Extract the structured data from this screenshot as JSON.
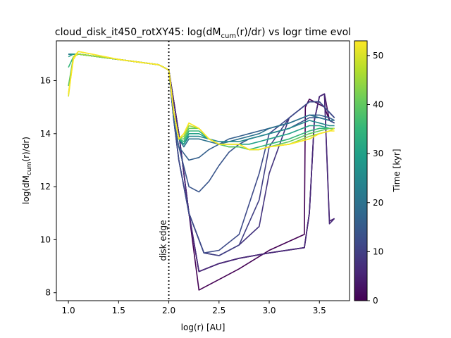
{
  "chart_data": {
    "type": "line",
    "title": {
      "prefix": "cloud_disk_it450_rotXY45: log(dM",
      "subscript": "cum",
      "suffix": "(r)/dr) vs logr time evol"
    },
    "xlabel": "log(r) [AU]",
    "ylabel": {
      "prefix": "log(dM",
      "subscript": "cum",
      "suffix": "(r)/dr)"
    },
    "xlim": [
      0.88,
      3.8
    ],
    "ylim": [
      7.7,
      17.5
    ],
    "xticks": [
      1.0,
      1.5,
      2.0,
      2.5,
      3.0,
      3.5
    ],
    "xtick_labels": [
      "1.0",
      "1.5",
      "2.0",
      "2.5",
      "3.0",
      "3.5"
    ],
    "yticks": [
      8,
      10,
      12,
      14,
      16
    ],
    "ytick_labels": [
      "8",
      "10",
      "12",
      "14",
      "16"
    ],
    "grid": false,
    "colormap": "viridis",
    "colorbar": {
      "label": "Time [kyr]",
      "min": 0,
      "max": 53,
      "ticks": [
        0,
        10,
        20,
        30,
        40,
        50
      ],
      "tick_labels": [
        "0",
        "10",
        "20",
        "30",
        "40",
        "50"
      ]
    },
    "annotation": {
      "text": "disk edge",
      "x": 2.0,
      "style": "dotted vertical line"
    },
    "series": [
      {
        "time": 0,
        "x": [
          1.0,
          1.05,
          1.1,
          1.5,
          1.9,
          2.0,
          2.1,
          2.2,
          2.3,
          2.5,
          2.7,
          3.0,
          3.35,
          3.36,
          3.4,
          3.55,
          3.6,
          3.65
        ],
        "y": [
          17.0,
          17.0,
          17.0,
          16.8,
          16.6,
          16.4,
          14.0,
          11.0,
          8.1,
          8.5,
          8.9,
          9.6,
          10.2,
          15.0,
          15.3,
          15.0,
          14.5,
          14.4
        ]
      },
      {
        "time": 2,
        "x": [
          1.0,
          1.05,
          1.1,
          1.5,
          1.9,
          2.0,
          2.1,
          2.2,
          2.3,
          2.5,
          2.7,
          3.0,
          3.35,
          3.4,
          3.45,
          3.5,
          3.55,
          3.6,
          3.65
        ],
        "y": [
          17.0,
          17.0,
          17.0,
          16.8,
          16.6,
          16.4,
          14.0,
          11.0,
          8.8,
          9.1,
          9.3,
          9.5,
          9.7,
          11.0,
          14.5,
          15.4,
          15.5,
          14.5,
          14.4
        ]
      },
      {
        "time": 4,
        "x": [
          1.0,
          1.05,
          1.1,
          1.5,
          1.9,
          2.0,
          2.1,
          2.2,
          2.3,
          2.5,
          2.7,
          3.0,
          3.35,
          3.4,
          3.45,
          3.5,
          3.55,
          3.6,
          3.65
        ],
        "y": [
          17.0,
          17.0,
          17.0,
          16.8,
          16.6,
          16.4,
          14.0,
          11.0,
          8.8,
          9.1,
          9.3,
          9.5,
          9.7,
          11.0,
          14.5,
          15.4,
          15.5,
          10.7,
          10.8
        ]
      },
      {
        "time": 6,
        "x": [
          1.0,
          1.05,
          1.1,
          1.5,
          1.9,
          2.0,
          2.1,
          2.2,
          2.3,
          2.5,
          2.7,
          3.0,
          3.35,
          3.4,
          3.45,
          3.5,
          3.55,
          3.6,
          3.65
        ],
        "y": [
          17.0,
          17.0,
          17.0,
          16.8,
          16.6,
          16.4,
          14.0,
          11.0,
          8.8,
          9.1,
          9.3,
          9.5,
          9.7,
          11.0,
          14.5,
          15.4,
          15.5,
          10.6,
          10.8
        ]
      },
      {
        "time": 8,
        "x": [
          1.0,
          1.05,
          1.1,
          1.5,
          1.9,
          2.0,
          2.05,
          2.1,
          2.2,
          2.35,
          2.5,
          2.7,
          2.9,
          3.0,
          3.2,
          3.4,
          3.5,
          3.6,
          3.65
        ],
        "y": [
          17.0,
          17.0,
          17.0,
          16.8,
          16.6,
          16.4,
          14.5,
          13.0,
          11.0,
          9.5,
          9.4,
          9.8,
          10.5,
          12.5,
          14.6,
          15.2,
          15.2,
          14.8,
          14.6
        ]
      },
      {
        "time": 10,
        "x": [
          1.0,
          1.05,
          1.1,
          1.5,
          1.9,
          2.0,
          2.05,
          2.1,
          2.2,
          2.35,
          2.5,
          2.7,
          2.9,
          3.0,
          3.2,
          3.4,
          3.5,
          3.6,
          3.65
        ],
        "y": [
          17.0,
          17.0,
          17.0,
          16.8,
          16.6,
          16.4,
          14.5,
          13.0,
          11.0,
          9.5,
          9.4,
          9.8,
          11.5,
          13.5,
          14.6,
          15.2,
          15.2,
          14.8,
          14.6
        ]
      },
      {
        "time": 12,
        "x": [
          1.0,
          1.05,
          1.1,
          1.5,
          1.9,
          2.0,
          2.05,
          2.1,
          2.2,
          2.35,
          2.5,
          2.7,
          2.9,
          3.0,
          3.2,
          3.4,
          3.5,
          3.6,
          3.65
        ],
        "y": [
          17.0,
          17.0,
          17.0,
          16.8,
          16.6,
          16.4,
          14.5,
          13.0,
          11.0,
          9.5,
          9.6,
          10.2,
          12.5,
          14.0,
          14.6,
          15.2,
          15.2,
          14.8,
          14.6
        ]
      },
      {
        "time": 14,
        "x": [
          1.0,
          1.05,
          1.1,
          1.5,
          1.9,
          2.0,
          2.05,
          2.1,
          2.2,
          2.3,
          2.4,
          2.5,
          2.6,
          2.7,
          2.8,
          2.9,
          3.0,
          3.2,
          3.4,
          3.5,
          3.6,
          3.65
        ],
        "y": [
          17.0,
          17.0,
          17.0,
          16.8,
          16.6,
          16.4,
          14.5,
          13.5,
          12.0,
          11.8,
          12.2,
          12.8,
          13.3,
          13.6,
          13.8,
          13.9,
          14.0,
          14.2,
          14.6,
          14.6,
          14.5,
          14.4
        ]
      },
      {
        "time": 16,
        "x": [
          1.0,
          1.05,
          1.1,
          1.5,
          1.9,
          2.0,
          2.05,
          2.1,
          2.2,
          2.3,
          2.4,
          2.5,
          2.6,
          2.7,
          2.8,
          2.9,
          3.0,
          3.2,
          3.4,
          3.5,
          3.6,
          3.65
        ],
        "y": [
          17.0,
          17.0,
          17.0,
          16.8,
          16.6,
          16.4,
          14.5,
          13.5,
          13.0,
          13.1,
          13.4,
          13.6,
          13.8,
          13.9,
          14.0,
          14.1,
          14.2,
          14.4,
          14.7,
          14.7,
          14.6,
          14.5
        ]
      },
      {
        "time": 20,
        "x": [
          1.0,
          1.05,
          1.1,
          1.5,
          1.9,
          2.0,
          2.05,
          2.1,
          2.15,
          2.2,
          2.3,
          2.4,
          2.5,
          2.6,
          2.7,
          2.8,
          2.9,
          3.0,
          3.2,
          3.4,
          3.5,
          3.6,
          3.65
        ],
        "y": [
          17.0,
          17.0,
          17.0,
          16.8,
          16.6,
          16.4,
          14.8,
          13.8,
          13.5,
          13.8,
          13.8,
          13.7,
          13.6,
          13.7,
          13.8,
          13.9,
          14.0,
          14.2,
          14.4,
          14.7,
          14.6,
          14.5,
          14.5
        ]
      },
      {
        "time": 25,
        "x": [
          1.0,
          1.05,
          1.1,
          1.5,
          1.9,
          2.0,
          2.05,
          2.1,
          2.15,
          2.2,
          2.3,
          2.4,
          2.5,
          2.6,
          2.7,
          2.8,
          2.9,
          3.0,
          3.2,
          3.4,
          3.5,
          3.6,
          3.65
        ],
        "y": [
          17.0,
          17.0,
          17.0,
          16.8,
          16.6,
          16.4,
          14.8,
          13.8,
          13.6,
          13.9,
          13.9,
          13.8,
          13.7,
          13.7,
          13.7,
          13.8,
          13.9,
          14.0,
          14.2,
          14.5,
          14.4,
          14.3,
          14.3
        ]
      },
      {
        "time": 30,
        "x": [
          1.0,
          1.05,
          1.1,
          1.5,
          1.9,
          2.0,
          2.05,
          2.1,
          2.15,
          2.2,
          2.3,
          2.4,
          2.5,
          2.6,
          2.7,
          2.8,
          2.9,
          3.0,
          3.2,
          3.4,
          3.5,
          3.6,
          3.65
        ],
        "y": [
          16.9,
          17.0,
          17.0,
          16.8,
          16.6,
          16.4,
          14.8,
          13.8,
          13.6,
          14.0,
          14.0,
          13.8,
          13.6,
          13.6,
          13.6,
          13.6,
          13.7,
          13.8,
          14.0,
          14.3,
          14.3,
          14.2,
          14.2
        ]
      },
      {
        "time": 35,
        "x": [
          1.0,
          1.05,
          1.1,
          1.5,
          1.9,
          2.0,
          2.05,
          2.1,
          2.15,
          2.2,
          2.3,
          2.4,
          2.5,
          2.6,
          2.7,
          2.8,
          2.9,
          3.0,
          3.2,
          3.4,
          3.5,
          3.6,
          3.65
        ],
        "y": [
          16.5,
          16.9,
          17.0,
          16.8,
          16.6,
          16.4,
          14.8,
          13.8,
          13.7,
          14.1,
          14.1,
          13.8,
          13.6,
          13.5,
          13.5,
          13.4,
          13.5,
          13.6,
          13.8,
          14.1,
          14.2,
          14.2,
          14.2
        ]
      },
      {
        "time": 40,
        "x": [
          1.0,
          1.05,
          1.1,
          1.5,
          1.9,
          2.0,
          2.05,
          2.1,
          2.15,
          2.2,
          2.3,
          2.4,
          2.5,
          2.6,
          2.7,
          2.8,
          2.9,
          3.0,
          3.2,
          3.4,
          3.5,
          3.6,
          3.65
        ],
        "y": [
          15.8,
          16.9,
          17.0,
          16.8,
          16.6,
          16.4,
          14.8,
          13.8,
          13.8,
          14.2,
          14.2,
          13.8,
          13.6,
          13.5,
          13.5,
          13.4,
          13.4,
          13.5,
          13.7,
          14.0,
          14.1,
          14.2,
          14.2
        ]
      },
      {
        "time": 45,
        "x": [
          1.0,
          1.05,
          1.1,
          1.5,
          1.9,
          2.0,
          2.05,
          2.1,
          2.15,
          2.2,
          2.3,
          2.4,
          2.5,
          2.6,
          2.7,
          2.8,
          2.9,
          3.0,
          3.2,
          3.4,
          3.5,
          3.6,
          3.65
        ],
        "y": [
          15.5,
          16.9,
          17.0,
          16.8,
          16.6,
          16.4,
          14.8,
          13.8,
          13.9,
          14.3,
          14.2,
          13.8,
          13.6,
          13.6,
          13.6,
          13.4,
          13.4,
          13.5,
          13.6,
          13.9,
          14.0,
          14.1,
          14.2
        ]
      },
      {
        "time": 50,
        "x": [
          1.0,
          1.05,
          1.1,
          1.5,
          1.9,
          2.0,
          2.05,
          2.1,
          2.15,
          2.2,
          2.3,
          2.4,
          2.5,
          2.6,
          2.7,
          2.8,
          2.9,
          3.0,
          3.2,
          3.4,
          3.5,
          3.6,
          3.65
        ],
        "y": [
          15.4,
          16.9,
          17.1,
          16.8,
          16.6,
          16.4,
          14.8,
          13.8,
          14.0,
          14.4,
          14.2,
          13.8,
          13.6,
          13.6,
          13.6,
          13.4,
          13.4,
          13.5,
          13.6,
          13.8,
          14.0,
          14.1,
          14.2
        ]
      },
      {
        "time": 53,
        "x": [
          1.0,
          1.05,
          1.1,
          1.5,
          1.9,
          2.0,
          2.05,
          2.1,
          2.15,
          2.2,
          2.3,
          2.4,
          2.5,
          2.6,
          2.7,
          2.8,
          2.9,
          3.0,
          3.2,
          3.4,
          3.5,
          3.6,
          3.65
        ],
        "y": [
          15.5,
          16.8,
          17.1,
          16.8,
          16.6,
          16.4,
          14.8,
          13.8,
          14.0,
          14.4,
          14.2,
          13.8,
          13.6,
          13.6,
          13.6,
          13.4,
          13.4,
          13.5,
          13.6,
          13.8,
          14.0,
          14.1,
          14.1
        ]
      }
    ]
  }
}
